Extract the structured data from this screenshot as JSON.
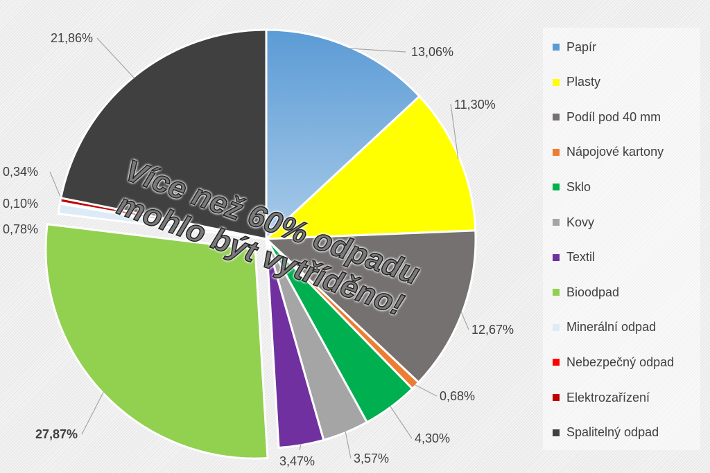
{
  "chart_data": {
    "type": "pie",
    "start_angle_deg": 0,
    "direction": "clockwise",
    "exploded": [
      "Bioodpad"
    ],
    "legend_position": "right",
    "slices": [
      {
        "name": "Papír",
        "value": 13.06,
        "label": "13,06%",
        "color": "#5b9bd5"
      },
      {
        "name": "Plasty",
        "value": 11.3,
        "label": "11,30%",
        "color": "#ffff00"
      },
      {
        "name": "Podíl pod 40 mm",
        "value": 12.67,
        "label": "12,67%",
        "color": "#767171"
      },
      {
        "name": "Nápojové kartony",
        "value": 0.68,
        "label": "0,68%",
        "color": "#ed7d31"
      },
      {
        "name": "Sklo",
        "value": 4.3,
        "label": "4,30%",
        "color": "#00b050"
      },
      {
        "name": "Kovy",
        "value": 3.57,
        "label": "3,57%",
        "color": "#a5a5a5"
      },
      {
        "name": "Textil",
        "value": 3.47,
        "label": "3,47%",
        "color": "#7030a0"
      },
      {
        "name": "Bioodpad",
        "value": 27.87,
        "label": "27,87%",
        "color": "#92d050"
      },
      {
        "name": "Minerální odpad",
        "value": 0.78,
        "label": "0,78%",
        "color": "#ddebf7"
      },
      {
        "name": "Nebezpečný odpad",
        "value": 0.1,
        "label": "0,10%",
        "color": "#ff0000"
      },
      {
        "name": "Elektrozařízení",
        "value": 0.34,
        "label": "0,34%",
        "color": "#c00000"
      },
      {
        "name": "Spalitelný odpad",
        "value": 21.86,
        "label": "21,86%",
        "color": "#404040"
      }
    ]
  },
  "annotation": "Více než 60% odpadu mohlo být vytříděno!"
}
